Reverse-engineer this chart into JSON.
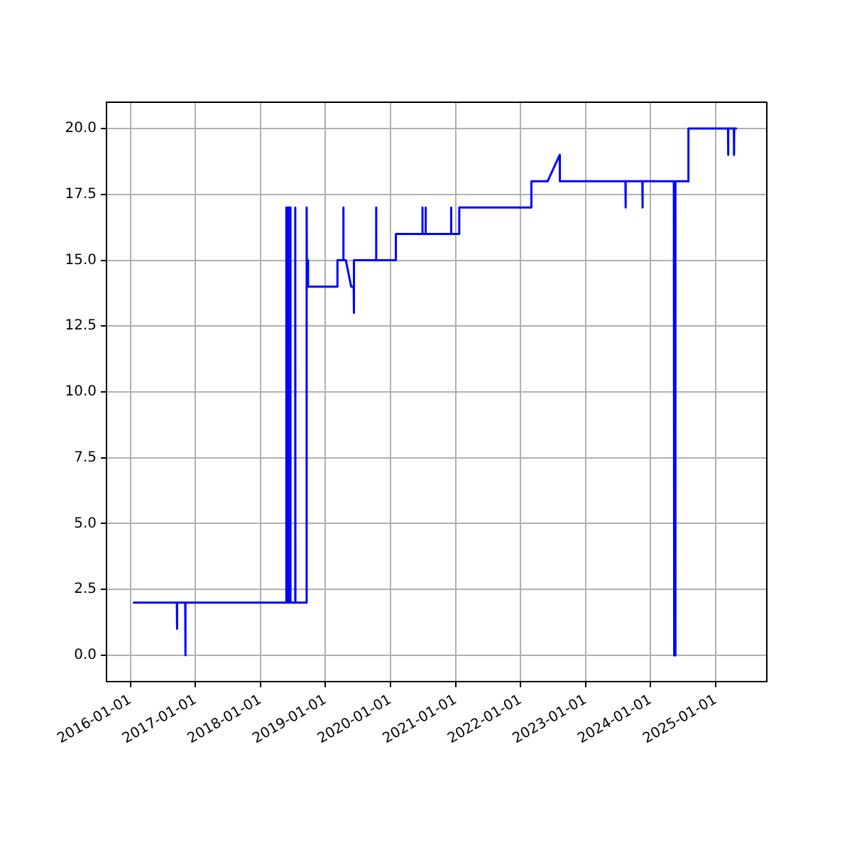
{
  "chart_data": {
    "type": "line",
    "color": "#0000ff",
    "grid": true,
    "legend": false,
    "marker": "none",
    "line_style": "solid",
    "xlim": [
      "2015-08-20",
      "2025-10-14"
    ],
    "ylim": [
      -1,
      21
    ],
    "xticks": [
      "2016-01-01",
      "2017-01-01",
      "2018-01-01",
      "2019-01-01",
      "2020-01-01",
      "2021-01-01",
      "2022-01-01",
      "2023-01-01",
      "2024-01-01",
      "2025-01-01"
    ],
    "yticks": [
      {
        "value": 0,
        "label": "0.0"
      },
      {
        "value": 2.5,
        "label": "2.5"
      },
      {
        "value": 5,
        "label": "5.0"
      },
      {
        "value": 7.5,
        "label": "7.5"
      },
      {
        "value": 10,
        "label": "10.0"
      },
      {
        "value": 12.5,
        "label": "12.5"
      },
      {
        "value": 15,
        "label": "15.0"
      },
      {
        "value": 17.5,
        "label": "17.5"
      },
      {
        "value": 20,
        "label": "20.0"
      }
    ],
    "x": [
      "2016-01-20",
      "2016-09-18",
      "2016-09-19",
      "2016-09-20",
      "2016-11-04",
      "2016-11-05",
      "2016-11-06",
      "2018-05-24",
      "2018-05-25",
      "2018-05-27",
      "2018-05-29",
      "2018-05-31",
      "2018-06-02",
      "2018-06-04",
      "2018-06-06",
      "2018-06-08",
      "2018-06-10",
      "2018-06-12",
      "2018-06-14",
      "2018-06-16",
      "2018-06-18",
      "2018-06-20",
      "2018-07-14",
      "2018-07-15",
      "2018-07-16",
      "2018-09-16",
      "2018-09-17",
      "2018-09-18",
      "2018-09-25",
      "2019-03-08",
      "2019-03-09",
      "2019-04-10",
      "2019-04-11",
      "2019-04-12",
      "2019-04-25",
      "2019-05-25",
      "2019-06-08",
      "2019-06-09",
      "2019-06-10",
      "2019-10-11",
      "2019-10-12",
      "2019-10-13",
      "2020-01-30",
      "2020-01-31",
      "2020-06-27",
      "2020-06-28",
      "2020-06-29",
      "2020-07-15",
      "2020-07-16",
      "2020-07-17",
      "2020-12-05",
      "2020-12-06",
      "2020-12-07",
      "2021-01-20",
      "2021-01-21",
      "2022-03-01",
      "2022-03-02",
      "2022-06-01",
      "2022-08-08",
      "2022-08-09",
      "2023-08-12",
      "2023-08-13",
      "2023-08-14",
      "2023-11-15",
      "2023-11-16",
      "2023-11-17",
      "2024-05-10",
      "2024-05-11",
      "2024-05-13",
      "2024-05-15",
      "2024-05-17",
      "2024-05-19",
      "2024-05-21",
      "2024-07-30",
      "2024-07-31",
      "2025-03-10",
      "2025-03-11",
      "2025-03-12",
      "2025-04-12",
      "2025-04-13",
      "2025-04-14",
      "2025-04-25"
    ],
    "values": [
      2,
      2,
      1,
      2,
      2,
      0,
      2,
      2,
      17,
      2,
      17,
      2,
      17,
      2,
      17,
      2,
      17,
      2,
      17,
      2,
      17,
      2,
      2,
      17,
      2,
      2,
      17,
      15,
      14,
      14,
      15,
      15,
      17,
      15,
      15,
      14,
      14,
      13,
      15,
      15,
      17,
      15,
      15,
      16,
      16,
      17,
      16,
      16,
      17,
      16,
      16,
      17,
      16,
      16,
      17,
      17,
      18,
      18,
      19,
      18,
      18,
      17,
      18,
      18,
      17,
      18,
      18,
      0,
      18,
      0,
      18,
      0,
      18,
      18,
      20,
      20,
      19,
      20,
      20,
      19,
      20,
      20
    ]
  }
}
